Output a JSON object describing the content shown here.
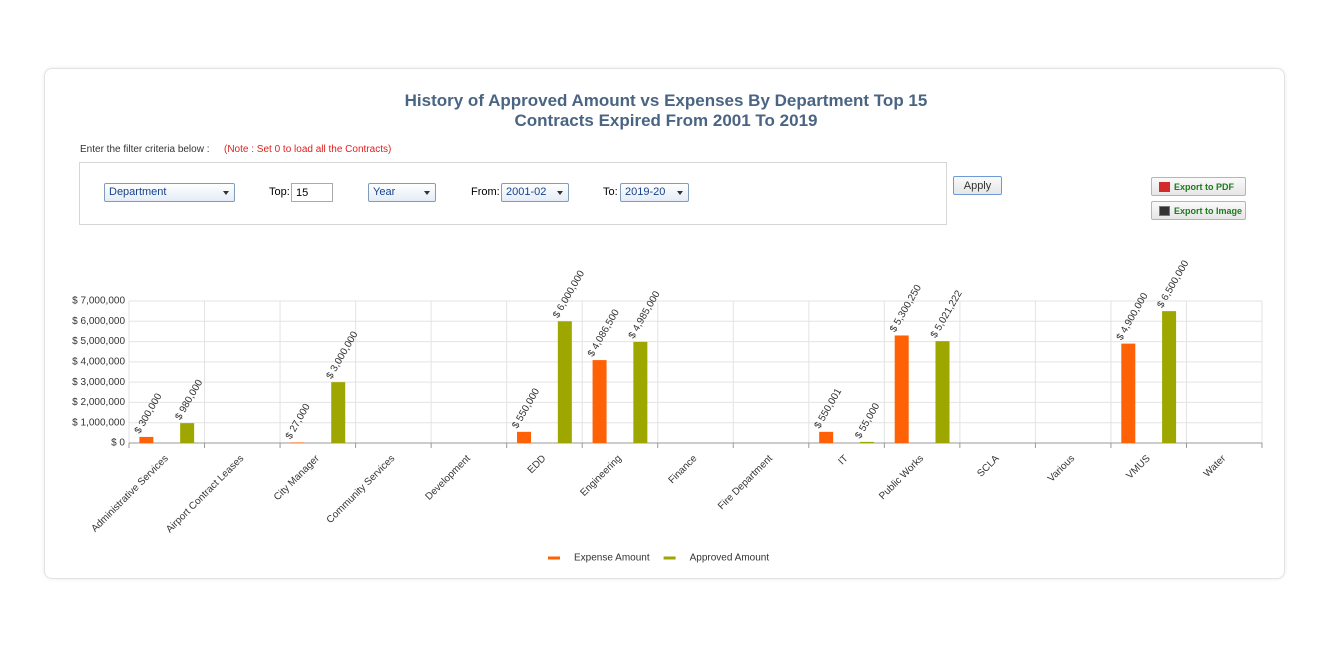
{
  "filter": {
    "prompt": "Enter the filter criteria below :",
    "note": "(Note : Set 0 to load all the Contracts)",
    "group_by": "Department",
    "top_label": "Top:",
    "top_value": "15",
    "period": "Year",
    "from_label": "From:",
    "from_value": "2001-02",
    "to_label": "To:",
    "to_value": "2019-20",
    "apply": "Apply"
  },
  "export": {
    "pdf": "Export to PDF",
    "image": "Export to Image"
  },
  "chart_data": {
    "type": "bar",
    "title": "History of Approved Amount vs Expenses By Department Top 15 Contracts Expired From 2001 To 2019",
    "categories": [
      "Administrative Services",
      "Airport Contract Leases",
      "City Manager",
      "Community Services",
      "Development",
      "EDD",
      "Engineering",
      "Finance",
      "Fire Department",
      "IT",
      "Public Works",
      "SCLA",
      "Various",
      "VMUS",
      "Water"
    ],
    "series": [
      {
        "name": "Expense Amount",
        "color": "#ff6106",
        "values": [
          300000,
          null,
          27000,
          null,
          null,
          550000,
          4086500,
          null,
          null,
          550001,
          5300250,
          null,
          null,
          4900000,
          null
        ],
        "value_labels": [
          "$ 300,000",
          null,
          "$ 27,000",
          null,
          null,
          "$ 550,000",
          "$ 4,086,500",
          null,
          null,
          "$ 550,001",
          "$ 5,300,250",
          null,
          null,
          "$ 4,900,000",
          null
        ]
      },
      {
        "name": "Approved Amount",
        "color": "#9ea600",
        "values": [
          980000,
          null,
          3000000,
          null,
          null,
          6000000,
          4985000,
          null,
          null,
          55000,
          5021222,
          null,
          null,
          6500000,
          null
        ],
        "value_labels": [
          "$ 980,000",
          null,
          "$ 3,000,000",
          null,
          null,
          "$ 6,000,000",
          "$ 4,985,000",
          null,
          null,
          "$ 55,000",
          "$ 5,021,222",
          null,
          null,
          "$ 6,500,000",
          null
        ]
      }
    ],
    "ylim": [
      0,
      7000000
    ],
    "yticks": [
      {
        "value": 0,
        "label": "$ 0"
      },
      {
        "value": 1000000,
        "label": "$ 1,000,000"
      },
      {
        "value": 2000000,
        "label": "$ 2,000,000"
      },
      {
        "value": 3000000,
        "label": "$ 3,000,000"
      },
      {
        "value": 4000000,
        "label": "$ 4,000,000"
      },
      {
        "value": 5000000,
        "label": "$ 5,000,000"
      },
      {
        "value": 6000000,
        "label": "$ 6,000,000"
      },
      {
        "value": 7000000,
        "label": "$ 7,000,000"
      }
    ],
    "grid": true,
    "legend": "bottom"
  }
}
